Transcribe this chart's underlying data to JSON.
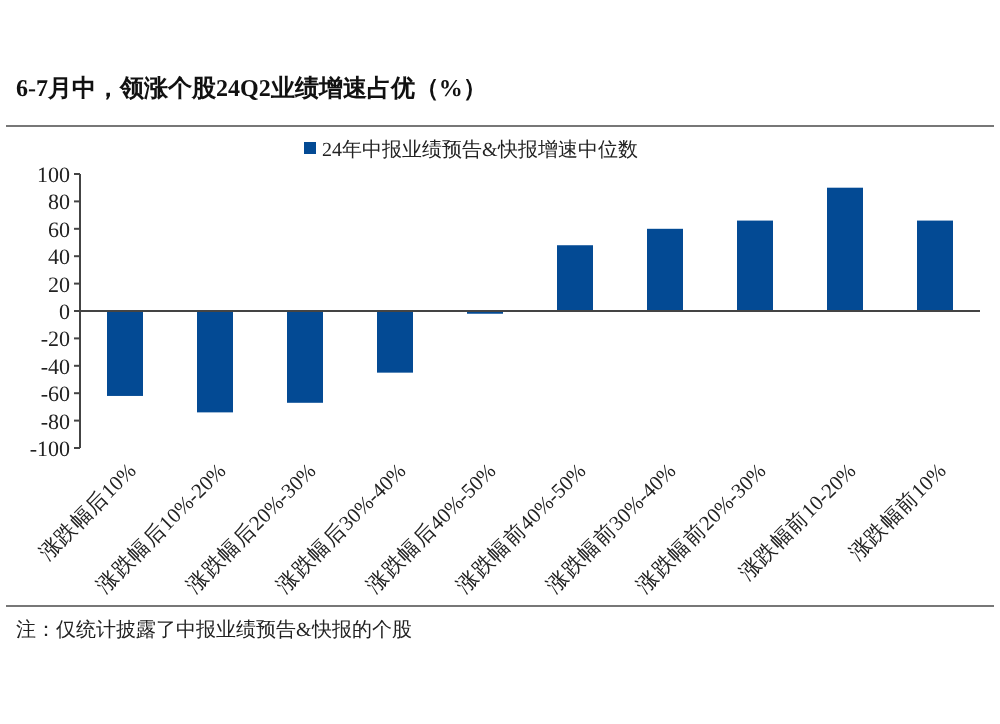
{
  "chart_data": {
    "type": "bar",
    "title": "6-7月中，领涨个股24Q2业绩增速占优（%）",
    "categories": [
      "涨跌幅后10%",
      "涨跌幅后10%-20%",
      "涨跌幅后20%-30%",
      "涨跌幅后30%-40%",
      "涨跌幅后40%-50%",
      "涨跌幅前40%-50%",
      "涨跌幅前30%-40%",
      "涨跌幅前20%-30%",
      "涨跌幅前10-20%",
      "涨跌幅前10%"
    ],
    "series": [
      {
        "name": "24年中报业绩预告&快报增速中位数",
        "color": "#034a94",
        "values": [
          -62,
          -74,
          -67,
          -45,
          -2,
          48,
          60,
          66,
          90,
          66
        ]
      }
    ],
    "ylim": [
      -100,
      100
    ],
    "yticks": [
      -100,
      -80,
      -60,
      -40,
      -20,
      0,
      20,
      40,
      60,
      80,
      100
    ],
    "legend": "top",
    "annotations": [
      "注：仅统计披露了中报业绩预告&快报的个股"
    ]
  }
}
